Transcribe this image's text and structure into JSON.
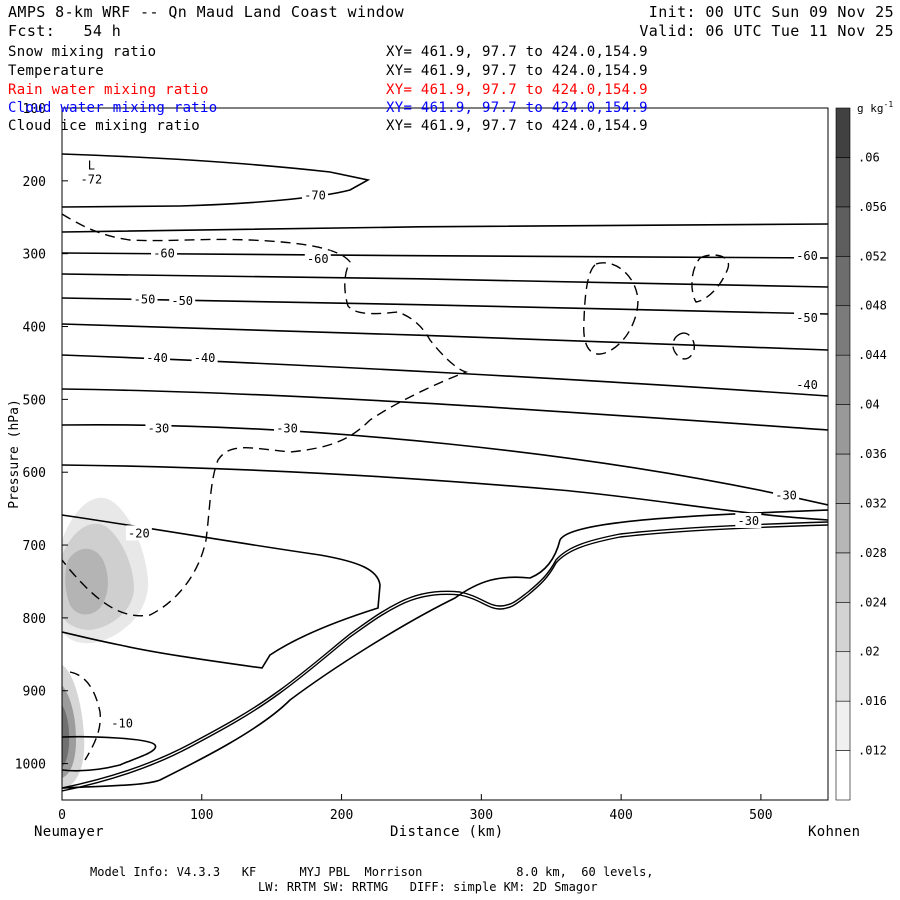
{
  "header": {
    "title": "AMPS 8-km WRF -- Qn Maud Land Coast window",
    "init": "Init: 00 UTC Sun 09 Nov 25",
    "fcst": "Fcst:   54 h",
    "valid": "Valid: 06 UTC Tue 11 Nov 25"
  },
  "fields": [
    {
      "name": "Snow mixing ratio",
      "xy": "XY= 461.9, 97.7 to 424.0,154.9",
      "color": "#000000"
    },
    {
      "name": "Temperature",
      "xy": "XY= 461.9, 97.7 to 424.0,154.9",
      "color": "#000000"
    },
    {
      "name": "Rain water mixing ratio",
      "xy": "XY= 461.9, 97.7 to 424.0,154.9",
      "color": "#ff0000"
    },
    {
      "name": "Cloud water mixing ratio",
      "xy": "XY= 461.9, 97.7 to 424.0,154.9",
      "color": "#0000ff"
    },
    {
      "name": "Cloud ice mixing ratio",
      "xy": "XY= 461.9, 97.7 to 424.0,154.9",
      "color": "#000000"
    }
  ],
  "axes": {
    "ylabel": "Pressure (hPa)",
    "xlabel": "Distance (km)",
    "left_station": "Neumayer",
    "right_station": "Kohnen"
  },
  "footer": {
    "line1": "Model Info: V4.3.3   KF      MYJ PBL  Morrison             8.0 km,  60 levels,",
    "line2": "LW: RRTM SW: RRTMG   DIFF: simple KM: 2D Smagor"
  },
  "chart_data": {
    "type": "contour",
    "x": {
      "min": 0,
      "max": 548,
      "ticks": [
        0,
        100,
        200,
        300,
        400,
        500
      ],
      "unit": "km"
    },
    "y": {
      "top": 100,
      "bottom": 1050,
      "ticks": [
        100,
        200,
        300,
        400,
        500,
        600,
        700,
        800,
        900,
        1000
      ],
      "unit": "hPa"
    },
    "colorbar": {
      "unit": "g kg-1",
      "levels": [
        0.012,
        0.016,
        0.02,
        0.024,
        0.028,
        0.032,
        0.036,
        0.04,
        0.044,
        0.048,
        0.052,
        0.056,
        0.06
      ],
      "labels": [
        ".012",
        ".016",
        ".02",
        ".024",
        ".028",
        ".032",
        ".036",
        ".04",
        ".044",
        ".048",
        ".052",
        ".056",
        ".06"
      ]
    },
    "temperature_labels": [
      {
        "text": "-70",
        "x": 181,
        "p": 220
      },
      {
        "text": "-60",
        "x": 73,
        "p": 300
      },
      {
        "text": "-60",
        "x": 183,
        "p": 307
      },
      {
        "text": "-60",
        "x": 533,
        "p": 303
      },
      {
        "text": "-50",
        "x": 59,
        "p": 363
      },
      {
        "text": "-50",
        "x": 86,
        "p": 365
      },
      {
        "text": "-50",
        "x": 533,
        "p": 388
      },
      {
        "text": "-40",
        "x": 68,
        "p": 443
      },
      {
        "text": "-40",
        "x": 102,
        "p": 443
      },
      {
        "text": "-40",
        "x": 533,
        "p": 480
      },
      {
        "text": "-30",
        "x": 69,
        "p": 540
      },
      {
        "text": "-30",
        "x": 161,
        "p": 540
      },
      {
        "text": "-30",
        "x": 518,
        "p": 632
      },
      {
        "text": "-30",
        "x": 491,
        "p": 667
      },
      {
        "text": "-20",
        "x": 55,
        "p": 684
      },
      {
        "text": "-10",
        "x": 43,
        "p": 945
      }
    ],
    "low_label": {
      "letter": "L",
      "value": "-72",
      "x": 21,
      "p": 190
    }
  }
}
